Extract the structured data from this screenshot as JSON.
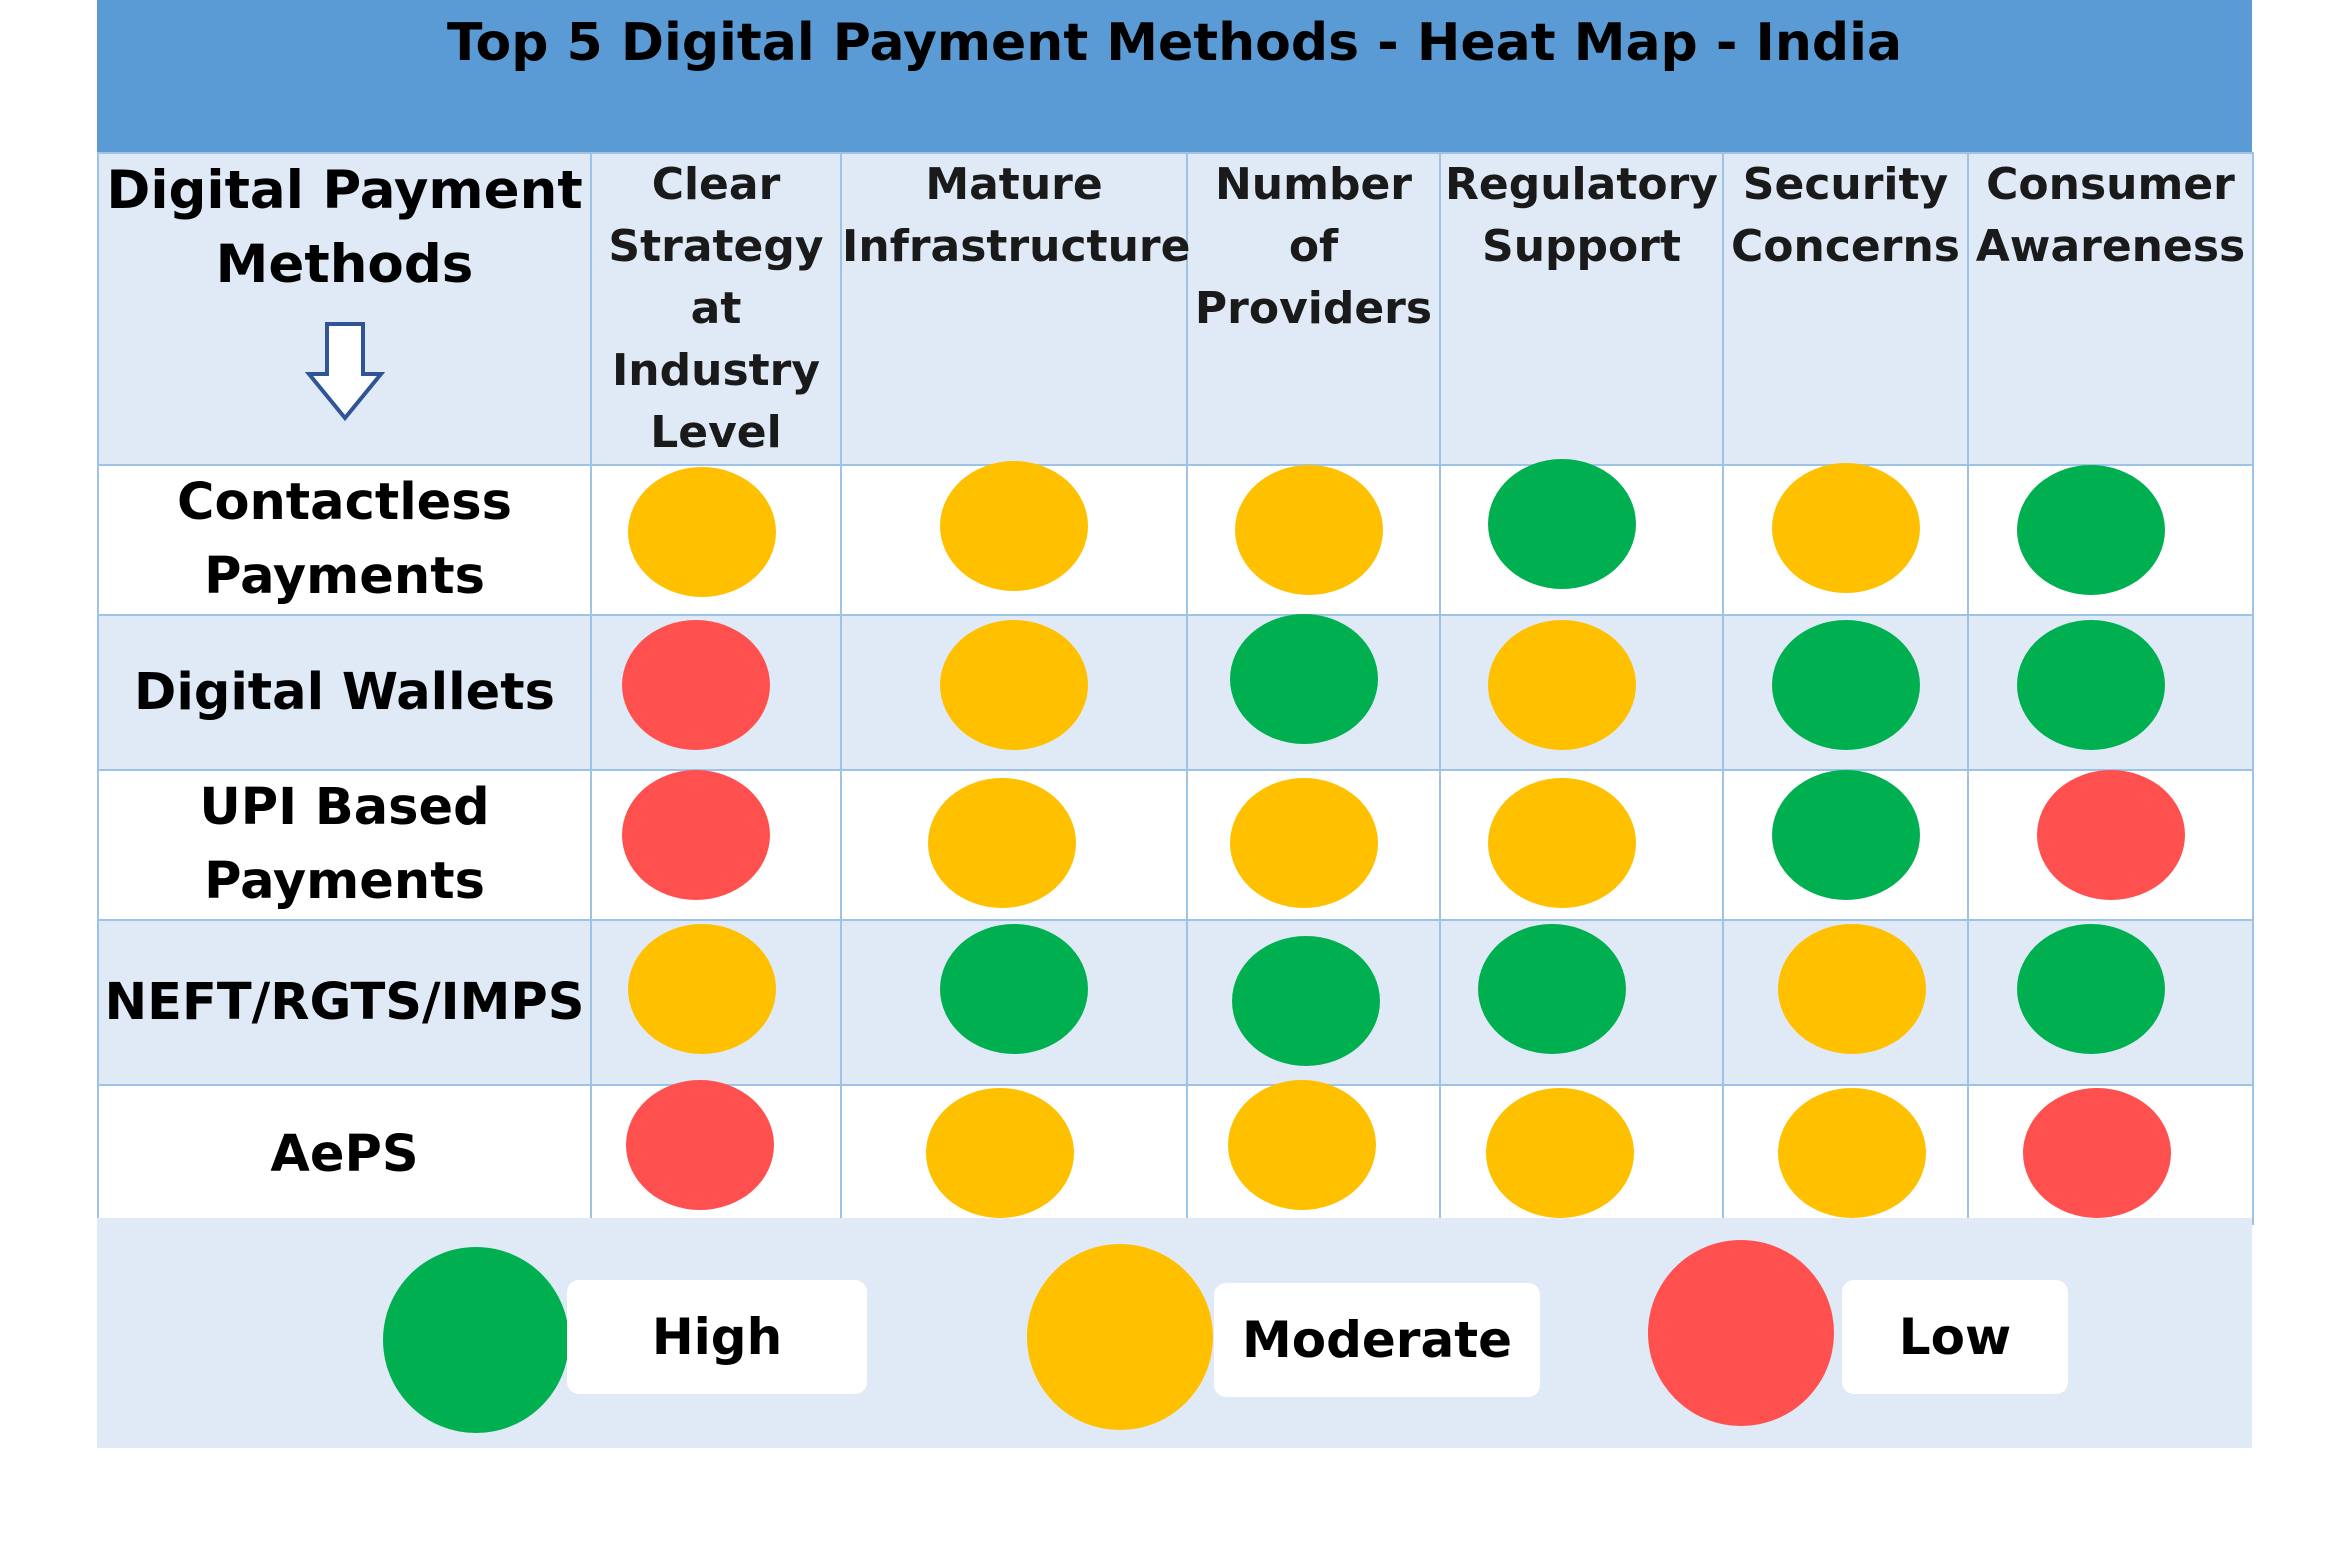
{
  "title": "Top 5 Digital Payment Methods - Heat Map - India",
  "corner_header": [
    "Digital Payment",
    "Methods"
  ],
  "icons": {
    "corner_arrow": "down-arrow-icon"
  },
  "colors": {
    "header": "#5b9bd5",
    "panel": "#dfeaf6",
    "border": "#9dc3e6",
    "High": "#00b050",
    "Moderate": "#ffc000",
    "Low": "#ff5050"
  },
  "chart_data": {
    "type": "heatmap",
    "title": "Top 5 Digital Payment Methods - Heat Map - India",
    "row_header": "Digital Payment Methods",
    "columns": [
      [
        "Clear",
        "Strategy",
        "at",
        "Industry",
        "Level"
      ],
      [
        "Mature",
        "Infrastructure"
      ],
      [
        "Number",
        "of",
        "Providers"
      ],
      [
        "Regulatory",
        "Support"
      ],
      [
        "Security",
        "Concerns"
      ],
      [
        "Consumer",
        "Awareness"
      ]
    ],
    "rows": [
      {
        "label": [
          "Contactless",
          "Payments"
        ],
        "values": [
          "Moderate",
          "Moderate",
          "Moderate",
          "High",
          "Moderate",
          "High"
        ]
      },
      {
        "label": [
          "Digital Wallets"
        ],
        "values": [
          "Low",
          "Moderate",
          "High",
          "Moderate",
          "High",
          "High"
        ]
      },
      {
        "label": [
          "UPI Based",
          "Payments"
        ],
        "values": [
          "Low",
          "Moderate",
          "Moderate",
          "Moderate",
          "High",
          "Low"
        ]
      },
      {
        "label": [
          "NEFT/RGTS/IMPS"
        ],
        "values": [
          "Moderate",
          "High",
          "High",
          "High",
          "Moderate",
          "High"
        ]
      },
      {
        "label": [
          "AePS"
        ],
        "values": [
          "Low",
          "Moderate",
          "Moderate",
          "Moderate",
          "Moderate",
          "Low"
        ]
      }
    ],
    "legend": [
      "High",
      "Moderate",
      "Low"
    ]
  }
}
